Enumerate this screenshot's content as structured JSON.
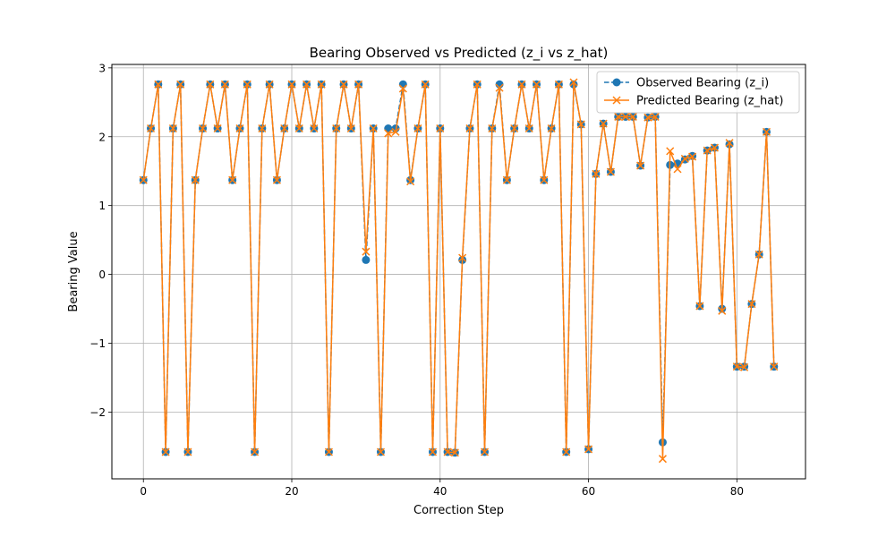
{
  "chart_data": {
    "type": "line",
    "title": "Bearing Observed vs Predicted (z_i vs z_hat)",
    "xlabel": "Correction Step",
    "ylabel": "Bearing Value",
    "xlim": [
      -4.25,
      89.25
    ],
    "ylim": [
      -2.97,
      3.05
    ],
    "xticks": [
      0,
      20,
      40,
      60,
      80
    ],
    "yticks": [
      -2,
      -1,
      0,
      1,
      2,
      3
    ],
    "xtick_labels": [
      "0",
      "20",
      "40",
      "60",
      "80"
    ],
    "ytick_labels": [
      "−2",
      "−1",
      "0",
      "1",
      "2",
      "3"
    ],
    "grid": true,
    "legend_position": "top-right",
    "colors": {
      "observed": "#1f77b4",
      "predicted": "#ff7f0e"
    },
    "x": [
      0,
      1,
      2,
      3,
      4,
      5,
      6,
      7,
      8,
      9,
      10,
      11,
      12,
      13,
      14,
      15,
      16,
      17,
      18,
      19,
      20,
      21,
      22,
      23,
      24,
      25,
      26,
      27,
      28,
      29,
      30,
      31,
      32,
      33,
      34,
      35,
      36,
      37,
      38,
      39,
      40,
      41,
      42,
      43,
      44,
      45,
      46,
      47,
      48,
      49,
      50,
      51,
      52,
      53,
      54,
      55,
      56,
      57,
      58,
      59,
      60,
      61,
      62,
      63,
      64,
      65,
      66,
      67,
      68,
      69,
      70,
      71,
      72,
      73,
      74,
      75,
      76,
      77,
      78,
      79,
      80,
      81,
      82,
      83,
      84,
      85
    ],
    "series": [
      {
        "name": "Observed Bearing (z_i)",
        "marker": "circle",
        "line": "dashed",
        "values": [
          1.37,
          2.12,
          2.76,
          -2.58,
          2.12,
          2.76,
          -2.58,
          1.37,
          2.12,
          2.76,
          2.12,
          2.76,
          1.37,
          2.12,
          2.76,
          -2.58,
          2.12,
          2.76,
          1.37,
          2.12,
          2.76,
          2.12,
          2.76,
          2.12,
          2.76,
          -2.58,
          2.12,
          2.76,
          2.12,
          2.76,
          0.21,
          2.12,
          -2.58,
          2.12,
          2.12,
          2.76,
          1.37,
          2.12,
          2.76,
          -2.58,
          2.12,
          -2.58,
          -2.59,
          0.21,
          2.12,
          2.76,
          -2.58,
          2.12,
          2.76,
          1.37,
          2.12,
          2.76,
          2.12,
          2.76,
          1.37,
          2.12,
          2.76,
          -2.58,
          2.76,
          2.18,
          -2.54,
          1.46,
          2.19,
          1.49,
          2.29,
          2.29,
          2.29,
          1.58,
          2.28,
          2.29,
          -2.44,
          1.59,
          1.61,
          1.67,
          1.72,
          -0.46,
          1.8,
          1.84,
          -0.5,
          1.89,
          -1.34,
          -1.34,
          -0.43,
          0.29,
          2.07,
          -1.34
        ]
      },
      {
        "name": "Predicted Bearing (z_hat)",
        "marker": "x",
        "line": "solid",
        "values": [
          1.37,
          2.12,
          2.76,
          -2.58,
          2.12,
          2.76,
          -2.58,
          1.37,
          2.12,
          2.76,
          2.12,
          2.76,
          1.37,
          2.12,
          2.76,
          -2.58,
          2.12,
          2.76,
          1.37,
          2.12,
          2.76,
          2.12,
          2.76,
          2.12,
          2.76,
          -2.58,
          2.12,
          2.76,
          2.12,
          2.76,
          0.33,
          2.12,
          -2.58,
          2.05,
          2.07,
          2.7,
          1.35,
          2.12,
          2.76,
          -2.58,
          2.12,
          -2.58,
          -2.59,
          0.24,
          2.12,
          2.76,
          -2.58,
          2.12,
          2.71,
          1.37,
          2.12,
          2.76,
          2.12,
          2.76,
          1.37,
          2.12,
          2.76,
          -2.58,
          2.79,
          2.18,
          -2.54,
          1.46,
          2.19,
          1.49,
          2.29,
          2.29,
          2.29,
          1.58,
          2.28,
          2.29,
          -2.68,
          1.79,
          1.53,
          1.68,
          1.71,
          -0.46,
          1.8,
          1.84,
          -0.53,
          1.91,
          -1.34,
          -1.35,
          -0.43,
          0.29,
          2.07,
          -1.34
        ]
      }
    ]
  }
}
